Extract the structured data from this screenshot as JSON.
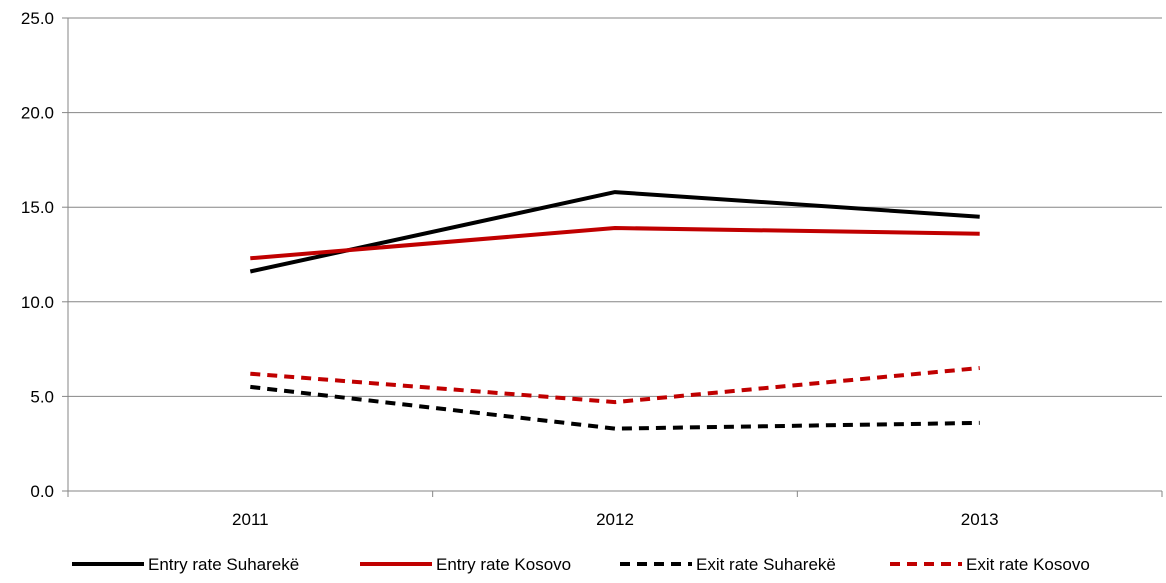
{
  "chart_data": {
    "type": "line",
    "title": "",
    "xlabel": "",
    "ylabel": "",
    "x": [
      "2011",
      "2012",
      "2013"
    ],
    "ylim": [
      0,
      25
    ],
    "yticks": [
      "0.0",
      "5.0",
      "10.0",
      "15.0",
      "20.0",
      "25.0"
    ],
    "grid": true,
    "legend_position": "bottom",
    "series": [
      {
        "name": "Entry rate Suharekë",
        "values": [
          11.6,
          15.8,
          14.5
        ],
        "color": "#000000",
        "dashed": false
      },
      {
        "name": "Entry rate Kosovo",
        "values": [
          12.3,
          13.9,
          13.6
        ],
        "color": "#c00000",
        "dashed": false
      },
      {
        "name": "Exit rate Suharekë",
        "values": [
          5.5,
          3.3,
          3.6
        ],
        "color": "#000000",
        "dashed": true
      },
      {
        "name": "Exit rate Kosovo",
        "values": [
          6.2,
          4.7,
          6.5
        ],
        "color": "#c00000",
        "dashed": true
      }
    ]
  }
}
